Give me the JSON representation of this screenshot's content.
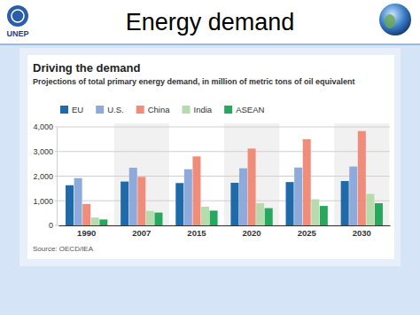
{
  "slide": {
    "title": "Energy demand",
    "logo_text": "UNEP"
  },
  "chart_data": {
    "type": "bar",
    "title": "Driving the demand",
    "subtitle": "Projections of total primary energy demand, in million of metric tons of oil equivalent",
    "source": "Source: OECD/IEA",
    "categories": [
      "1990",
      "2007",
      "2015",
      "2020",
      "2025",
      "2030"
    ],
    "series": [
      {
        "name": "EU",
        "color": "#1f6aa8",
        "values": [
          1630,
          1780,
          1720,
          1730,
          1760,
          1800
        ]
      },
      {
        "name": "U.S.",
        "color": "#8eaadb",
        "values": [
          1920,
          2340,
          2280,
          2320,
          2350,
          2390
        ]
      },
      {
        "name": "China",
        "color": "#f08c7a",
        "values": [
          870,
          1970,
          2800,
          3120,
          3500,
          3830
        ]
      },
      {
        "name": "India",
        "color": "#b6dcae",
        "values": [
          320,
          590,
          760,
          900,
          1060,
          1280
        ]
      },
      {
        "name": "ASEAN",
        "color": "#27a85e",
        "values": [
          240,
          520,
          600,
          700,
          790,
          900
        ]
      }
    ],
    "ylim": [
      0,
      4000
    ],
    "yticks": [
      0,
      {
        "value": 1000,
        "label": "1,000"
      },
      {
        "value": 2000,
        "label": "2,000"
      },
      {
        "value": 3000,
        "label": "3,000"
      },
      {
        "value": 4000,
        "label": "4,000"
      }
    ],
    "grid": true,
    "legend": "top-left"
  }
}
